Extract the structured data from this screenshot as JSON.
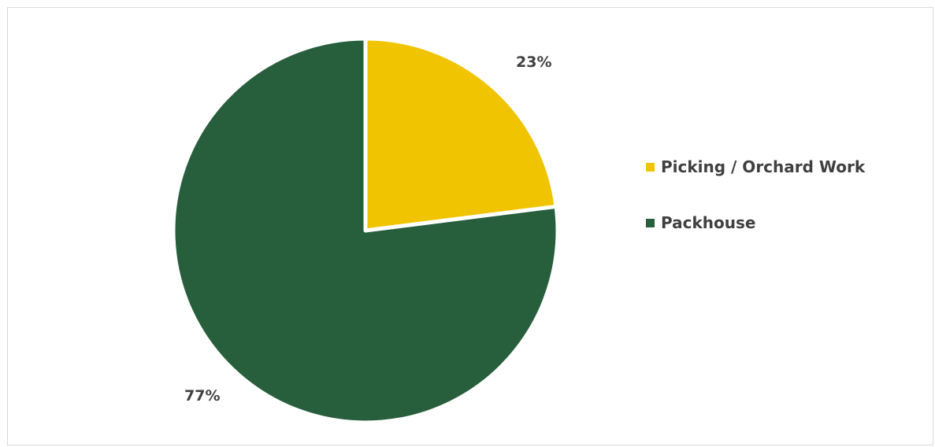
{
  "chart_data": {
    "type": "pie",
    "slices": [
      {
        "label": "Picking / Orchard Work",
        "value": 23,
        "display": "23%",
        "color": "#f0c400"
      },
      {
        "label": "Packhouse",
        "value": 77,
        "display": "77%",
        "color": "#275e3b"
      }
    ],
    "start_angle": "12 o'clock",
    "direction": "clockwise",
    "legend": "right"
  }
}
